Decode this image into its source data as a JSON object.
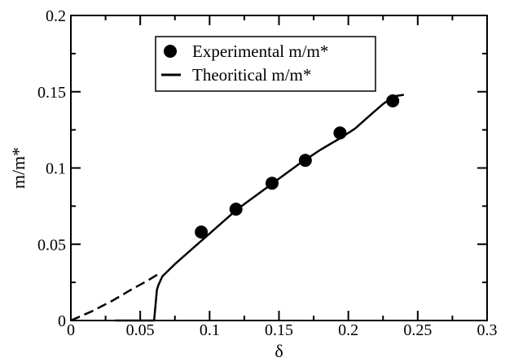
{
  "chart_data": {
    "type": "scatter",
    "xlabel": "δ",
    "ylabel": "m/m*",
    "xlim": [
      0,
      0.3
    ],
    "ylim": [
      0,
      0.2
    ],
    "x_ticks": [
      0,
      0.05,
      0.1,
      0.15,
      0.2,
      0.25,
      0.3
    ],
    "x_tick_labels": [
      "0",
      "0.05",
      "0.1",
      "0.15",
      "0.2",
      "0.25",
      "0.3"
    ],
    "y_ticks": [
      0,
      0.05,
      0.1,
      0.15,
      0.2
    ],
    "y_tick_labels": [
      "0",
      "0.05",
      "0.1",
      "0.15",
      "0.2"
    ],
    "x_minor_step": 0.025,
    "y_minor_step": 0.025,
    "grid": false,
    "legend_position": "top-center",
    "series": [
      {
        "name": "Experimental m/m*",
        "kind": "scatter",
        "color": "#000000",
        "points": [
          [
            0.094,
            0.058
          ],
          [
            0.119,
            0.073
          ],
          [
            0.145,
            0.09
          ],
          [
            0.169,
            0.105
          ],
          [
            0.194,
            0.123
          ],
          [
            0.232,
            0.144
          ]
        ]
      },
      {
        "name": "Theoritical m/m*",
        "kind": "line",
        "color": "#000000",
        "dashed": false,
        "points": [
          [
            0.06,
            0.0
          ],
          [
            0.061,
            0.01
          ],
          [
            0.062,
            0.02
          ],
          [
            0.063,
            0.023
          ],
          [
            0.066,
            0.029
          ],
          [
            0.075,
            0.037
          ],
          [
            0.09,
            0.049
          ],
          [
            0.105,
            0.061
          ],
          [
            0.12,
            0.073
          ],
          [
            0.135,
            0.083
          ],
          [
            0.15,
            0.093
          ],
          [
            0.165,
            0.103
          ],
          [
            0.18,
            0.112
          ],
          [
            0.195,
            0.12
          ],
          [
            0.205,
            0.126
          ],
          [
            0.215,
            0.134
          ],
          [
            0.225,
            0.142
          ],
          [
            0.233,
            0.147
          ],
          [
            0.24,
            0.148
          ]
        ]
      },
      {
        "kind": "line",
        "color": "#000000",
        "dashed": true,
        "points": [
          [
            0.0,
            0.0
          ],
          [
            0.015,
            0.006
          ],
          [
            0.03,
            0.013
          ],
          [
            0.045,
            0.021
          ],
          [
            0.055,
            0.026
          ],
          [
            0.064,
            0.031
          ]
        ]
      },
      {
        "kind": "line",
        "color": "#000000",
        "dashed": false,
        "points": [
          [
            0.032,
            0.0
          ],
          [
            0.06,
            0.0
          ]
        ]
      }
    ]
  }
}
